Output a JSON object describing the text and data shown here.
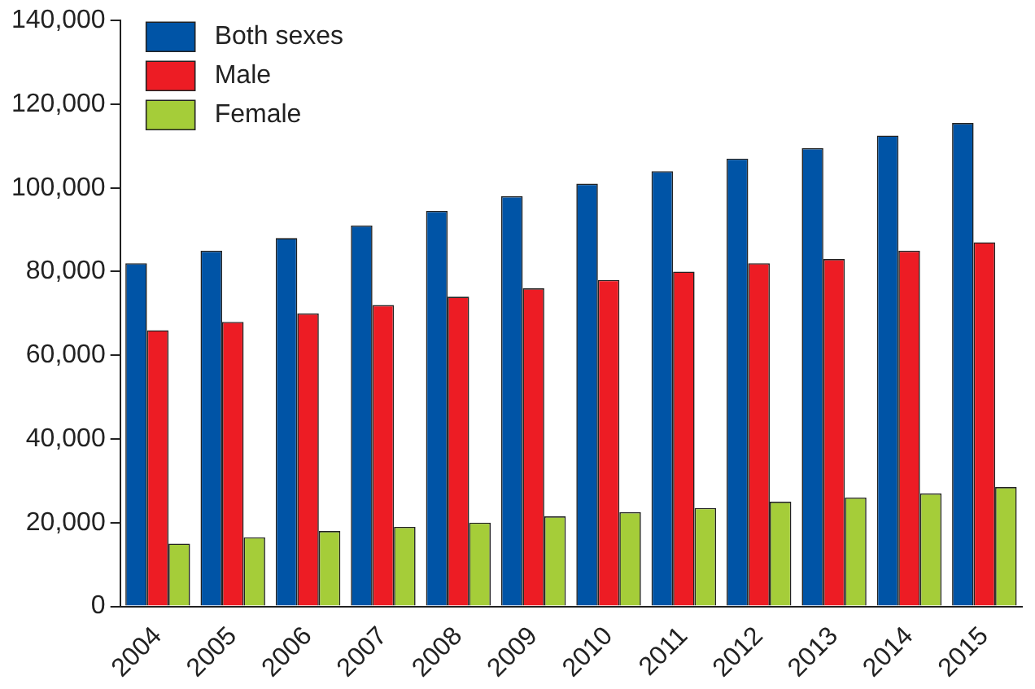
{
  "chart_data": {
    "type": "bar",
    "categories": [
      "2004",
      "2005",
      "2006",
      "2007",
      "2008",
      "2009",
      "2010",
      "2011",
      "2012",
      "2013",
      "2014",
      "2015"
    ],
    "series": [
      {
        "name": "Both sexes",
        "color": "#0054a6",
        "values": [
          82000,
          85000,
          88000,
          91000,
          94500,
          98000,
          101000,
          104000,
          107000,
          109500,
          112500,
          115500
        ]
      },
      {
        "name": "Male",
        "color": "#ed1c24",
        "values": [
          66000,
          68000,
          70000,
          72000,
          74000,
          76000,
          78000,
          80000,
          82000,
          83000,
          85000,
          87000
        ]
      },
      {
        "name": "Female",
        "color": "#a5cd39",
        "values": [
          15000,
          16500,
          18000,
          19000,
          20000,
          21500,
          22500,
          23500,
          25000,
          26000,
          27000,
          28500
        ]
      }
    ],
    "ylim": [
      0,
      140000
    ],
    "yticks": [
      {
        "value": 0,
        "label": "0"
      },
      {
        "value": 20000,
        "label": "20,000"
      },
      {
        "value": 40000,
        "label": "40,000"
      },
      {
        "value": 60000,
        "label": "60,000"
      },
      {
        "value": 80000,
        "label": "80,000"
      },
      {
        "value": 100000,
        "label": "100,000"
      },
      {
        "value": 120000,
        "label": "120,000"
      },
      {
        "value": 140000,
        "label": "140,000"
      }
    ],
    "grid": false,
    "legend": "top left"
  }
}
